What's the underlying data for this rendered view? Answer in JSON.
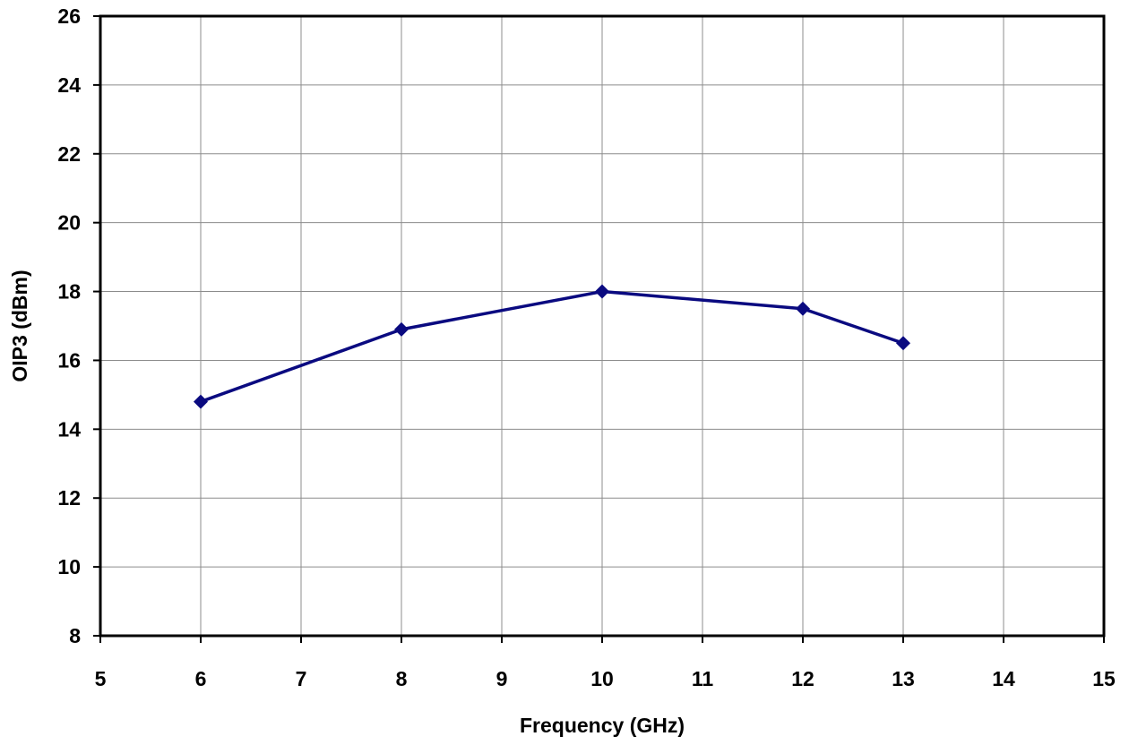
{
  "chart_data": {
    "type": "line",
    "title": "",
    "xlabel": "Frequency (GHz)",
    "ylabel": "OIP3 (dBm)",
    "xlim": [
      5,
      15
    ],
    "ylim": [
      8,
      26
    ],
    "xticks": [
      5,
      6,
      7,
      8,
      9,
      10,
      11,
      12,
      13,
      14,
      15
    ],
    "yticks": [
      8,
      10,
      12,
      14,
      16,
      18,
      20,
      22,
      24,
      26
    ],
    "grid": true,
    "legend": "none",
    "marker": "diamond",
    "colors": {
      "series": "#0a0a80",
      "grid": "#8c8c8c",
      "frame": "#000000"
    },
    "series": [
      {
        "x": [
          6,
          8,
          10,
          12,
          13
        ],
        "y": [
          14.8,
          16.9,
          18.0,
          17.5,
          16.5
        ]
      }
    ]
  }
}
